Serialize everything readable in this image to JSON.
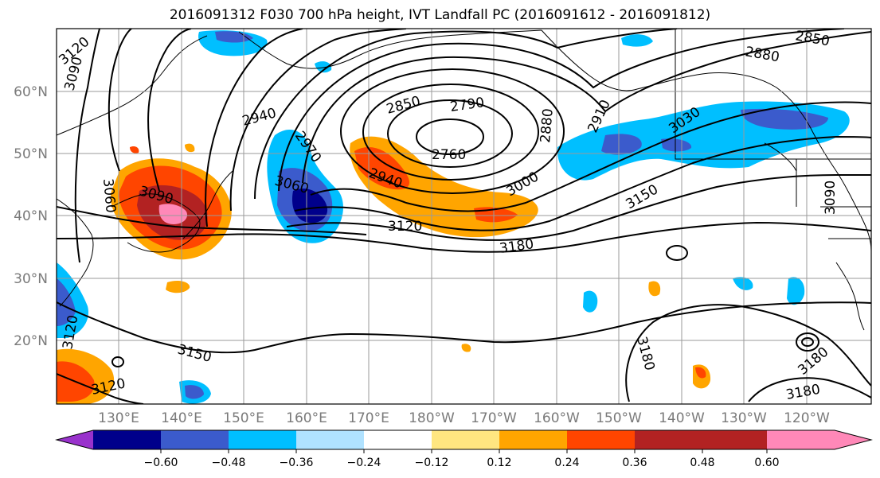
{
  "title": "2016091312 F030 700 hPa height, IVT Landfall PC (2016091612 - 2016091812)",
  "lat_labels": [
    "60°N",
    "50°N",
    "40°N",
    "30°N",
    "20°N"
  ],
  "lon_labels": [
    "130°E",
    "140°E",
    "150°E",
    "160°E",
    "170°E",
    "180°W",
    "170°W",
    "160°W",
    "150°W",
    "140°W",
    "130°W",
    "120°W"
  ],
  "colorbar": {
    "ticks": [
      "−0.60",
      "−0.48",
      "−0.36",
      "−0.24",
      "−0.12",
      "0.12",
      "0.24",
      "0.36",
      "0.48",
      "0.60"
    ],
    "colors": [
      "#9932CC",
      "#00008B",
      "#3B5BCC",
      "#00BFFF",
      "#B0E2FF",
      "#FFFFFF",
      "#FFE680",
      "#FFA500",
      "#FF4500",
      "#B22222",
      "#FF88B8"
    ]
  },
  "contour_labels": [
    {
      "text": "3120"
    },
    {
      "text": "3090"
    },
    {
      "text": "2940"
    },
    {
      "text": "2850"
    },
    {
      "text": "2790"
    },
    {
      "text": "2760"
    },
    {
      "text": "2880"
    },
    {
      "text": "2910"
    },
    {
      "text": "3030"
    },
    {
      "text": "2850"
    },
    {
      "text": "2880"
    },
    {
      "text": "3060"
    },
    {
      "text": "2970"
    },
    {
      "text": "3060"
    },
    {
      "text": "3090"
    },
    {
      "text": "2940"
    },
    {
      "text": "3000"
    },
    {
      "text": "3150"
    },
    {
      "text": "3120"
    },
    {
      "text": "3180"
    },
    {
      "text": "3090"
    },
    {
      "text": "3150"
    },
    {
      "text": "3120"
    },
    {
      "text": "3180"
    },
    {
      "text": "3180"
    },
    {
      "text": "3180"
    },
    {
      "text": "3120"
    }
  ]
}
